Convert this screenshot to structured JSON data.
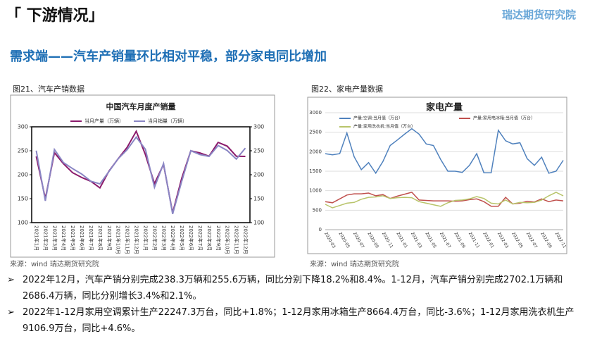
{
  "header": {
    "title": "「 下游情况」",
    "logo": "瑞达期货研究院"
  },
  "headline": "需求端——汽车产销量环比相对平稳，部分家电同比增加",
  "figures": [
    "图21、汽车产销数据",
    "图22、家电产量数据"
  ],
  "sources": [
    "来源：wind  瑞达期货研究院",
    "来源：wind  瑞达期货研究院"
  ],
  "bullets": [
    "2022年12月，汽车产销分别完成238.3万辆和255.6万辆，同比分别下降18.2%和8.4%。1-12月，汽车产销分别完成2702.1万辆和2686.4万辆，同比分别增长3.4%和2.1%。",
    "2022年1-12月家用空调累计生产22247.3万台，同比+1.8%；1-12月家用冰箱生产8664.4万台，同比-3.6%；1-12月家用洗衣机生产9106.9万台，同比+4.6%。"
  ],
  "chart_data": [
    {
      "type": "line",
      "title": "中国汽车月度产销量",
      "categories": [
        "2021年1月",
        "2021年2月",
        "2021年3月",
        "2021年4月",
        "2021年5月",
        "2021年6月",
        "2021年7月",
        "2021年8月",
        "2021年9月",
        "2021年10月",
        "2021年11月",
        "2021年12月",
        "2022年1月",
        "2022年2月",
        "2022年3月",
        "2022年4月",
        "2022年5月",
        "2022年6月",
        "2022年7月",
        "2022年8月",
        "2022年9月",
        "2022年10月",
        "2022年11月",
        "2022年12月"
      ],
      "series": [
        {
          "name": "当月产量（万辆）",
          "color": "#8b1a6b",
          "values": [
            238.2,
            150.3,
            246.1,
            222.8,
            204.3,
            194.3,
            186.3,
            172.5,
            207.7,
            233.1,
            257.2,
            290.7,
            242.1,
            181.4,
            221.6,
            120.5,
            192.6,
            249.9,
            245.5,
            238.7,
            267.5,
            259.7,
            238.7,
            238.3
          ]
        },
        {
          "name": "当月销量（万辆）",
          "color": "#8a86c4",
          "values": [
            250.3,
            145.5,
            252.6,
            225.2,
            212.8,
            201.5,
            186.4,
            180.9,
            206.7,
            233.2,
            252.2,
            278.6,
            253.1,
            173.7,
            223.4,
            118.1,
            186.2,
            250.2,
            242,
            238.3,
            261,
            250.6,
            232.6,
            255.6
          ]
        }
      ],
      "ylim": [
        100,
        300
      ],
      "yticks": [
        100,
        150,
        200,
        250,
        300
      ],
      "y2lim": [
        100,
        300
      ],
      "y2ticks": [
        100,
        150,
        200,
        250,
        300
      ],
      "legend": "top"
    },
    {
      "type": "line",
      "title": "家电产量",
      "categories": [
        "2020-03",
        null,
        "2020-05",
        null,
        "2020-07",
        null,
        "2020-09",
        null,
        "2020-11",
        null,
        "2021-01",
        null,
        "2021-03",
        null,
        "2021-05",
        null,
        "2021-07",
        null,
        "2021-09",
        null,
        "2021-11",
        null,
        "2022-01",
        null,
        "2022-03",
        null,
        "2022-05",
        null,
        "2022-07",
        null,
        "2022-09",
        null,
        "2022-11",
        null
      ],
      "series": [
        {
          "name": "产量:空调:当月值（万台）",
          "color": "#4f81bd",
          "values": [
            1950,
            1920,
            1950,
            2480,
            1870,
            1540,
            1720,
            1450,
            1750,
            2160,
            2300,
            2450,
            2590,
            2450,
            2200,
            2160,
            1800,
            1500,
            1500,
            1470,
            1650,
            1950,
            1460,
            1460,
            2550,
            2280,
            2200,
            2230,
            1820,
            1650,
            1860,
            1450,
            1500,
            1780
          ]
        },
        {
          "name": "产量:家用电冰箱:当月值（万台）",
          "color": "#c0504d",
          "values": [
            720,
            690,
            790,
            890,
            920,
            920,
            940,
            870,
            900,
            800,
            860,
            910,
            960,
            760,
            750,
            740,
            740,
            740,
            730,
            740,
            770,
            790,
            720,
            600,
            600,
            830,
            660,
            680,
            730,
            710,
            790,
            720,
            760,
            740
          ]
        },
        {
          "name": "产量:家用洗衣机:当月值（万台）",
          "color": "#b8c46a",
          "values": [
            650,
            560,
            620,
            680,
            700,
            780,
            830,
            840,
            870,
            800,
            820,
            830,
            820,
            720,
            680,
            640,
            600,
            690,
            750,
            760,
            790,
            850,
            800,
            680,
            660,
            760,
            660,
            700,
            690,
            700,
            760,
            870,
            960,
            870
          ]
        }
      ],
      "ylim": [
        0,
        3000
      ],
      "yticks": [
        0,
        500,
        1000,
        1500,
        2000,
        2500,
        3000
      ],
      "grid": true,
      "legend": "top"
    }
  ]
}
